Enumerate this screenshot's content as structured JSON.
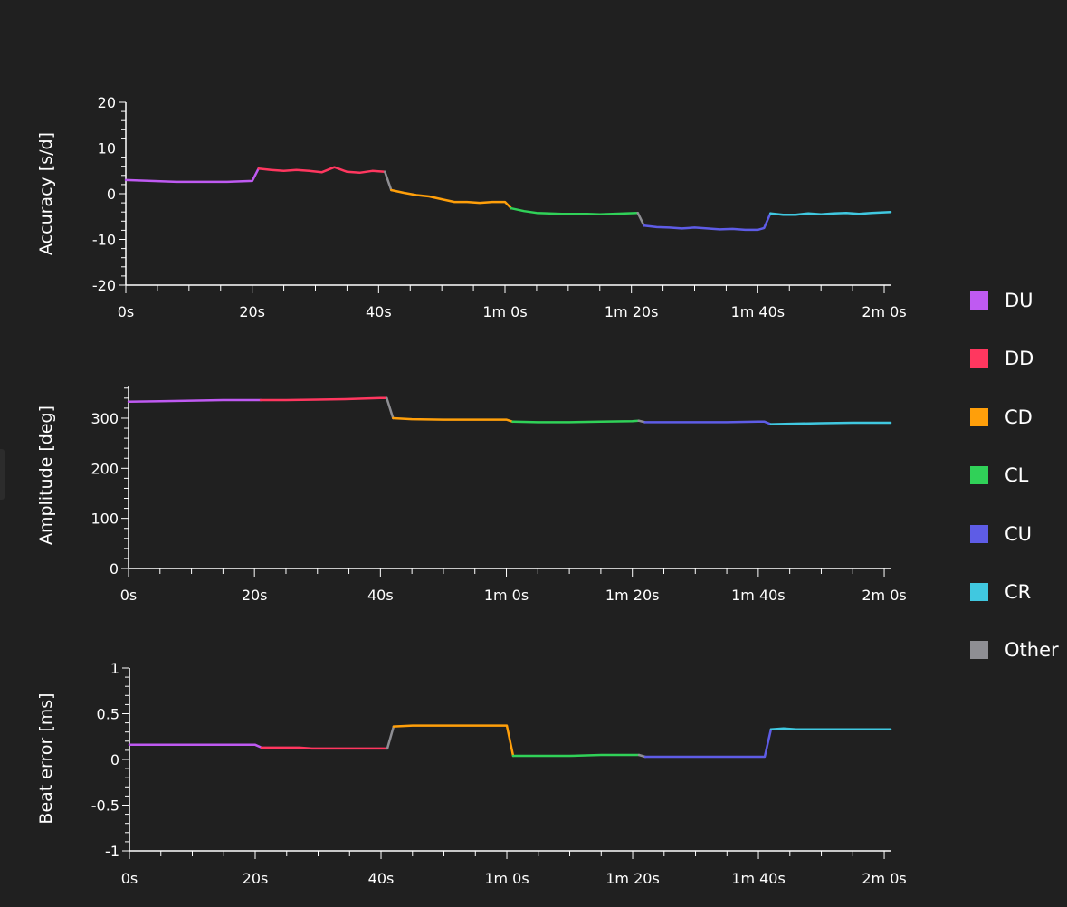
{
  "colors": {
    "DU": "#bf5af2",
    "DD": "#ff375f",
    "CD": "#ff9f0a",
    "CL": "#30d158",
    "CU": "#5e5ce6",
    "CR": "#40c8e0",
    "Other": "#8e8e93",
    "axis": "#ffffff",
    "background": "#202020"
  },
  "legend": [
    {
      "label": "DU",
      "color": "#bf5af2"
    },
    {
      "label": "DD",
      "color": "#ff375f"
    },
    {
      "label": "CD",
      "color": "#ff9f0a"
    },
    {
      "label": "CL",
      "color": "#30d158"
    },
    {
      "label": "CU",
      "color": "#5e5ce6"
    },
    {
      "label": "CR",
      "color": "#40c8e0"
    },
    {
      "label": "Other",
      "color": "#8e8e93"
    }
  ],
  "chart_data": [
    {
      "type": "line",
      "ylabel": "Accuracy [s/d]",
      "xlabel": "",
      "xlim": [
        0,
        121
      ],
      "ylim": [
        -20,
        20
      ],
      "xticks": [
        0,
        20,
        40,
        60,
        80,
        100,
        120
      ],
      "xtick_labels": [
        "0s",
        "20s",
        "40s",
        "1m 0s",
        "1m 20s",
        "1m 40s",
        "2m 0s"
      ],
      "yticks": [
        20,
        10,
        0,
        -10,
        -20
      ],
      "ytick_labels": [
        "20",
        "10",
        "0",
        "-10",
        "-20"
      ],
      "series": [
        {
          "name": "DU",
          "x": [
            0,
            4,
            8,
            12,
            16,
            20,
            21
          ],
          "y": [
            3,
            2.8,
            2.6,
            2.6,
            2.6,
            2.8,
            5.5
          ]
        },
        {
          "name": "DD",
          "x": [
            21,
            23,
            25,
            27,
            29,
            31,
            33,
            35,
            37,
            39,
            41
          ],
          "y": [
            5.5,
            5.2,
            5.0,
            5.2,
            5.0,
            4.7,
            5.8,
            4.8,
            4.6,
            5.0,
            4.8
          ]
        },
        {
          "name": "Other",
          "x": [
            41,
            42
          ],
          "y": [
            4.8,
            0.8
          ]
        },
        {
          "name": "CD",
          "x": [
            42,
            44,
            46,
            48,
            50,
            52,
            54,
            56,
            58,
            60,
            61
          ],
          "y": [
            0.8,
            0.2,
            -0.3,
            -0.6,
            -1.2,
            -1.8,
            -1.8,
            -2.0,
            -1.8,
            -1.8,
            -3.2
          ]
        },
        {
          "name": "CL",
          "x": [
            61,
            63,
            65,
            67,
            69,
            71,
            73,
            75,
            77,
            79,
            81
          ],
          "y": [
            -3.2,
            -3.8,
            -4.2,
            -4.3,
            -4.4,
            -4.4,
            -4.4,
            -4.5,
            -4.4,
            -4.3,
            -4.2
          ]
        },
        {
          "name": "Other",
          "x": [
            81,
            82
          ],
          "y": [
            -4.2,
            -7.0
          ]
        },
        {
          "name": "CU",
          "x": [
            82,
            84,
            86,
            88,
            90,
            92,
            94,
            96,
            98,
            100,
            101,
            102
          ],
          "y": [
            -7.0,
            -7.3,
            -7.4,
            -7.6,
            -7.4,
            -7.6,
            -7.8,
            -7.7,
            -7.9,
            -7.9,
            -7.5,
            -4.3
          ]
        },
        {
          "name": "CR",
          "x": [
            102,
            104,
            106,
            108,
            110,
            112,
            114,
            116,
            118,
            121
          ],
          "y": [
            -4.3,
            -4.6,
            -4.6,
            -4.3,
            -4.5,
            -4.3,
            -4.2,
            -4.4,
            -4.2,
            -4.0
          ]
        }
      ]
    },
    {
      "type": "line",
      "ylabel": "Amplitude [deg]",
      "xlabel": "",
      "xlim": [
        0,
        121
      ],
      "ylim": [
        0,
        365
      ],
      "xticks": [
        0,
        20,
        40,
        60,
        80,
        100,
        120
      ],
      "xtick_labels": [
        "0s",
        "20s",
        "40s",
        "1m 0s",
        "1m 20s",
        "1m 40s",
        "2m 0s"
      ],
      "yticks": [
        300,
        200,
        100,
        0
      ],
      "ytick_labels": [
        "300",
        "200",
        "100",
        "0"
      ],
      "series": [
        {
          "name": "DU",
          "x": [
            0,
            5,
            10,
            15,
            21
          ],
          "y": [
            333,
            334,
            335,
            336,
            336
          ]
        },
        {
          "name": "DD",
          "x": [
            21,
            25,
            30,
            35,
            40,
            41
          ],
          "y": [
            336,
            336,
            337,
            338,
            340,
            340
          ]
        },
        {
          "name": "Other",
          "x": [
            41,
            42
          ],
          "y": [
            340,
            300
          ]
        },
        {
          "name": "CD",
          "x": [
            42,
            45,
            50,
            55,
            60,
            61
          ],
          "y": [
            300,
            298,
            297,
            297,
            297,
            293
          ]
        },
        {
          "name": "CL",
          "x": [
            61,
            65,
            70,
            75,
            80,
            81
          ],
          "y": [
            293,
            292,
            292,
            293,
            294,
            295
          ]
        },
        {
          "name": "Other",
          "x": [
            81,
            82
          ],
          "y": [
            295,
            292
          ]
        },
        {
          "name": "CU",
          "x": [
            82,
            85,
            90,
            95,
            100,
            101,
            102
          ],
          "y": [
            292,
            292,
            292,
            292,
            293,
            293,
            288
          ]
        },
        {
          "name": "CR",
          "x": [
            102,
            105,
            110,
            115,
            121
          ],
          "y": [
            288,
            289,
            290,
            291,
            291
          ]
        }
      ]
    },
    {
      "type": "line",
      "ylabel": "Beat error [ms]",
      "xlabel": "",
      "xlim": [
        0,
        121
      ],
      "ylim": [
        -1,
        1
      ],
      "xticks": [
        0,
        20,
        40,
        60,
        80,
        100,
        120
      ],
      "xtick_labels": [
        "0s",
        "20s",
        "40s",
        "1m 0s",
        "1m 20s",
        "1m 40s",
        "2m 0s"
      ],
      "yticks": [
        1,
        0.5,
        0,
        -0.5,
        -1
      ],
      "ytick_labels": [
        "1",
        "0.5",
        "0",
        "-0.5",
        "-1"
      ],
      "series": [
        {
          "name": "DU",
          "x": [
            0,
            5,
            10,
            15,
            20,
            21
          ],
          "y": [
            0.16,
            0.16,
            0.16,
            0.16,
            0.16,
            0.13
          ]
        },
        {
          "name": "DD",
          "x": [
            21,
            23,
            25,
            27,
            29,
            31,
            35,
            39,
            41
          ],
          "y": [
            0.13,
            0.13,
            0.13,
            0.13,
            0.12,
            0.12,
            0.12,
            0.12,
            0.12
          ]
        },
        {
          "name": "Other",
          "x": [
            41,
            42
          ],
          "y": [
            0.12,
            0.36
          ]
        },
        {
          "name": "CD",
          "x": [
            42,
            45,
            50,
            55,
            60,
            61
          ],
          "y": [
            0.36,
            0.37,
            0.37,
            0.37,
            0.37,
            0.04
          ]
        },
        {
          "name": "CL",
          "x": [
            61,
            65,
            70,
            75,
            80,
            81
          ],
          "y": [
            0.04,
            0.04,
            0.04,
            0.05,
            0.05,
            0.05
          ]
        },
        {
          "name": "Other",
          "x": [
            81,
            82
          ],
          "y": [
            0.05,
            0.03
          ]
        },
        {
          "name": "CU",
          "x": [
            82,
            85,
            90,
            95,
            100,
            101,
            102
          ],
          "y": [
            0.03,
            0.03,
            0.03,
            0.03,
            0.03,
            0.03,
            0.33
          ]
        },
        {
          "name": "CR",
          "x": [
            102,
            104,
            106,
            110,
            115,
            121
          ],
          "y": [
            0.33,
            0.34,
            0.33,
            0.33,
            0.33,
            0.33
          ]
        }
      ]
    }
  ]
}
